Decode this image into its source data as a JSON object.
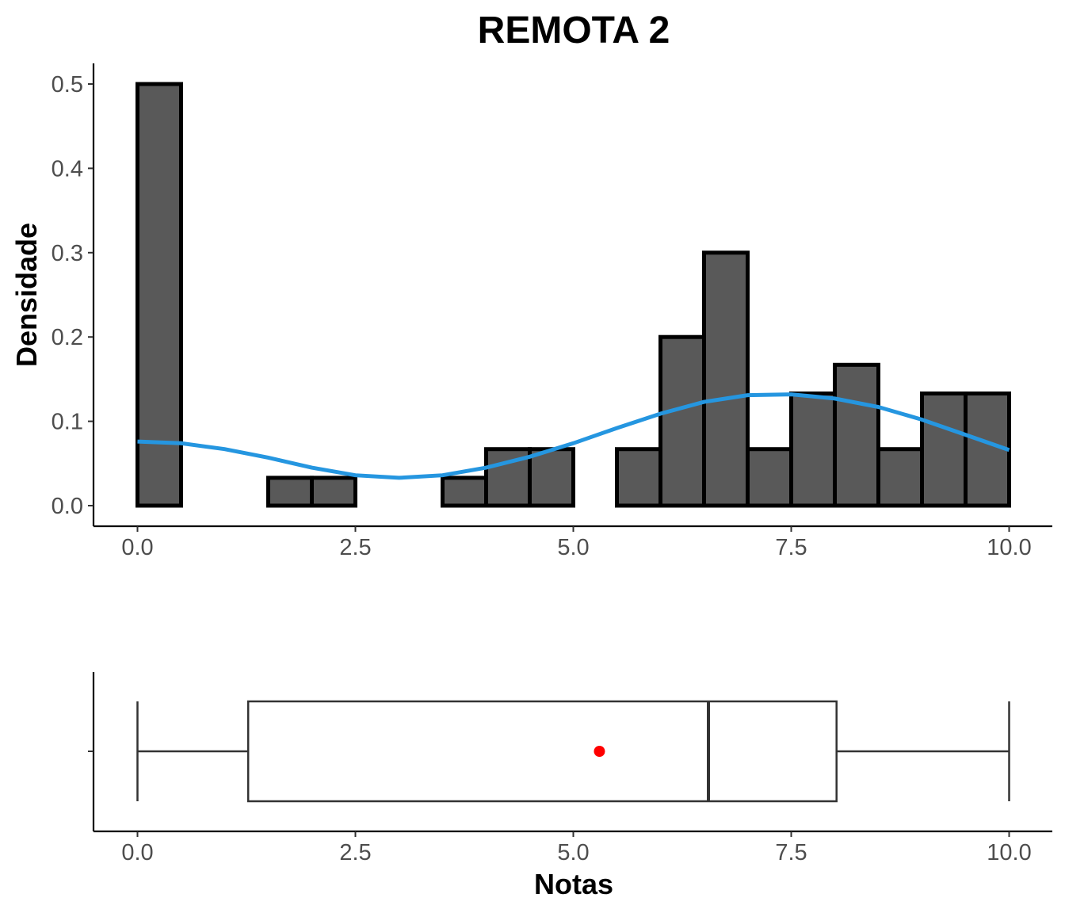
{
  "chart_data": [
    {
      "type": "bar",
      "subtype": "histogram",
      "title": "REMOTA 2",
      "xlabel": "",
      "ylabel": "Densidade",
      "xlim": [
        -0.25,
        10.25
      ],
      "ylim": [
        0,
        0.525
      ],
      "x_ticks": [
        0.0,
        2.5,
        5.0,
        7.5,
        10.0
      ],
      "x_tick_labels": [
        "0.0",
        "2.5",
        "5.0",
        "7.5",
        "10.0"
      ],
      "y_ticks": [
        0.0,
        0.1,
        0.2,
        0.3,
        0.4,
        0.5
      ],
      "y_tick_labels": [
        "0.0",
        "0.1",
        "0.2",
        "0.3",
        "0.4",
        "0.5"
      ],
      "bin_width": 0.5,
      "bins": [
        {
          "x_start": 0.0,
          "density": 0.5
        },
        {
          "x_start": 0.5,
          "density": 0.0
        },
        {
          "x_start": 1.0,
          "density": 0.0
        },
        {
          "x_start": 1.5,
          "density": 0.033
        },
        {
          "x_start": 2.0,
          "density": 0.033
        },
        {
          "x_start": 2.5,
          "density": 0.0
        },
        {
          "x_start": 3.0,
          "density": 0.0
        },
        {
          "x_start": 3.5,
          "density": 0.033
        },
        {
          "x_start": 4.0,
          "density": 0.067
        },
        {
          "x_start": 4.5,
          "density": 0.067
        },
        {
          "x_start": 5.0,
          "density": 0.0
        },
        {
          "x_start": 5.5,
          "density": 0.067
        },
        {
          "x_start": 6.0,
          "density": 0.2
        },
        {
          "x_start": 6.5,
          "density": 0.3
        },
        {
          "x_start": 7.0,
          "density": 0.067
        },
        {
          "x_start": 7.5,
          "density": 0.133
        },
        {
          "x_start": 8.0,
          "density": 0.167
        },
        {
          "x_start": 8.5,
          "density": 0.067
        },
        {
          "x_start": 9.0,
          "density": 0.133
        },
        {
          "x_start": 9.5,
          "density": 0.133
        }
      ],
      "density_curve": {
        "color": "#2596e0",
        "x": [
          0.0,
          0.5,
          1.0,
          1.5,
          2.0,
          2.5,
          3.0,
          3.5,
          4.0,
          4.5,
          5.0,
          5.5,
          6.0,
          6.5,
          7.0,
          7.5,
          8.0,
          8.5,
          9.0,
          9.5,
          10.0
        ],
        "y": [
          0.076,
          0.074,
          0.067,
          0.057,
          0.045,
          0.036,
          0.033,
          0.036,
          0.045,
          0.058,
          0.074,
          0.092,
          0.109,
          0.123,
          0.131,
          0.132,
          0.127,
          0.117,
          0.102,
          0.084,
          0.066
        ]
      },
      "bar_color": "#595959",
      "grid": false
    },
    {
      "type": "boxplot",
      "xlabel": "Notas",
      "ylabel": "",
      "xlim": [
        -0.25,
        10.25
      ],
      "x_ticks": [
        0.0,
        2.5,
        5.0,
        7.5,
        10.0
      ],
      "x_tick_labels": [
        "0.0",
        "2.5",
        "5.0",
        "7.5",
        "10.0"
      ],
      "min": 0.0,
      "q1": 1.27,
      "median": 6.55,
      "q3": 8.02,
      "max": 10.0,
      "mean": 5.3,
      "mean_color": "#ff0000",
      "grid": false
    }
  ]
}
